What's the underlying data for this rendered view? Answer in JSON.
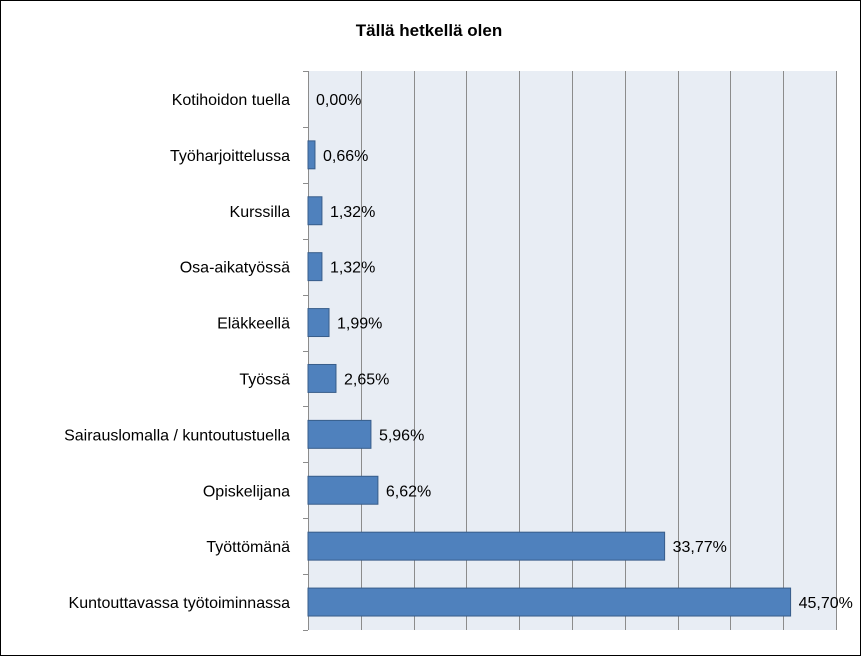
{
  "chart_data": {
    "type": "bar",
    "orientation": "horizontal",
    "title": "Tällä hetkellä olen",
    "categories": [
      "Kotihoidon tuella",
      "Työharjoittelussa",
      "Kurssilla",
      "Osa-aikatyössä",
      "Eläkkeellä",
      "Työssä",
      "Sairauslomalla / kuntoutustuella",
      "Opiskelijana",
      "Työttömänä",
      "Kuntouttavassa työtoiminnassa"
    ],
    "values": [
      0.0,
      0.66,
      1.32,
      1.32,
      1.99,
      2.65,
      5.96,
      6.62,
      33.77,
      45.7
    ],
    "value_labels": [
      "0,00%",
      "0,66%",
      "1,32%",
      "1,32%",
      "1,99%",
      "2,65%",
      "5,96%",
      "6,62%",
      "33,77%",
      "45,70%"
    ],
    "xlim": [
      0,
      50
    ],
    "x_gridlines": true,
    "colors": {
      "bar_fill": "#4F81BD",
      "bar_stroke": "#385D8A",
      "plot_background": "#E8EDF4",
      "gridline": "#8C8C8C"
    }
  }
}
